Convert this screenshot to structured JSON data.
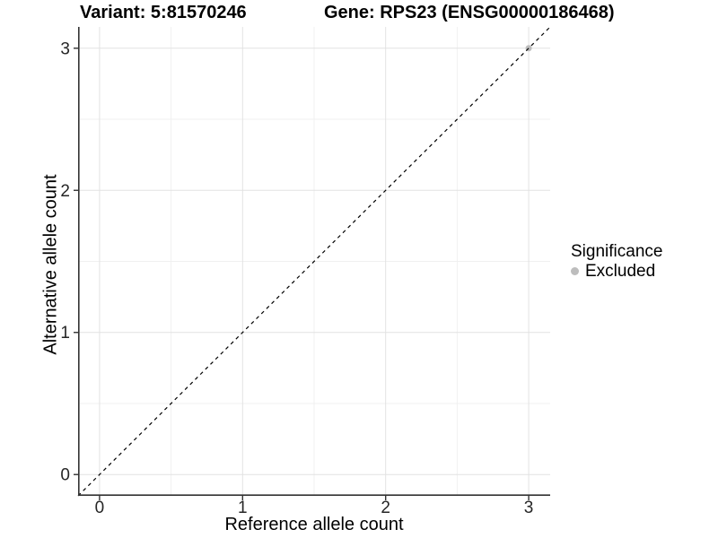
{
  "header": {
    "title_left": "Variant: 5:81570246",
    "title_right": "Gene: RPS23 (ENSG00000186468)"
  },
  "legend": {
    "title": "Significance",
    "items": [
      {
        "label": "Excluded",
        "color": "#bdbdbd",
        "marker": "circle"
      }
    ]
  },
  "chart_data": {
    "type": "scatter",
    "title": "Variant: 5:81570246 | Gene: RPS23 (ENSG00000186468)",
    "xlabel": "Reference allele count",
    "ylabel": "Alternative allele count",
    "xlim": [
      -0.15,
      3.15
    ],
    "ylim": [
      -0.15,
      3.15
    ],
    "x_ticks": [
      0,
      1,
      2,
      3
    ],
    "y_ticks": [
      0,
      1,
      2,
      3
    ],
    "minor_ticks": [
      0.5,
      1.5,
      2.5
    ],
    "grid": true,
    "legend_position": "right",
    "series": [
      {
        "name": "Excluded",
        "color": "#bdbdbd",
        "points": [
          {
            "x": 3,
            "y": 3
          }
        ]
      }
    ],
    "reference_line": {
      "meaning": "identity y = x",
      "x1": -0.15,
      "y1": -0.15,
      "x2": 3.15,
      "y2": 3.15,
      "line_style": "dashed",
      "color": "#000000"
    },
    "style": {
      "background": "#ffffff",
      "grid_major": "#e2e2e2",
      "grid_minor": "#f0f0f0",
      "axis": "#333333",
      "tick_label_color": "#262626",
      "point_color": "#bdbdbd"
    }
  }
}
